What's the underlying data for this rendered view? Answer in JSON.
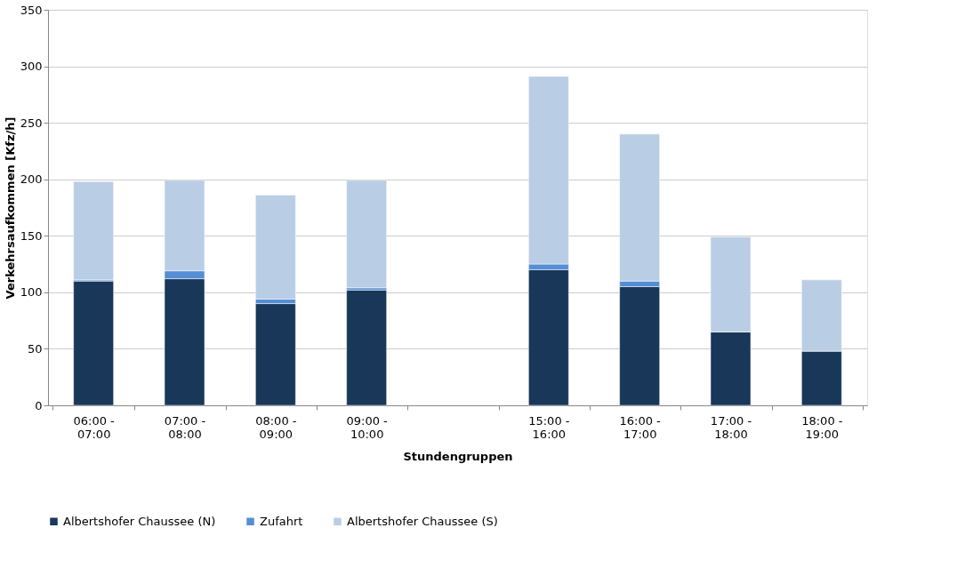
{
  "chart_data": {
    "type": "bar",
    "stacked": true,
    "xlabel": "Stundengruppen",
    "ylabel": "Verkehrsaufkommen [Kfz/h]",
    "categories": [
      "06:00 -\n07:00",
      "07:00 -\n08:00",
      "08:00 -\n09:00",
      "09:00 -\n10:00",
      null,
      "15:00 -\n16:00",
      "16:00 -\n17:00",
      "17:00 -\n18:00",
      "18:00 -\n19:00"
    ],
    "series": [
      {
        "name": "Albertshofer Chaussee (N)",
        "color": "#193759",
        "values": [
          110,
          112,
          90,
          102,
          null,
          120,
          105,
          65,
          48
        ]
      },
      {
        "name": "Zufahrt",
        "color": "#558ed5",
        "values": [
          1,
          7,
          4,
          2,
          null,
          5,
          5,
          0,
          0
        ]
      },
      {
        "name": "Albertshofer Chaussee (S)",
        "color": "#b9cde5",
        "values": [
          87,
          80,
          92,
          95,
          null,
          166,
          130,
          84,
          63
        ]
      }
    ],
    "ylim": [
      0,
      350
    ],
    "yticks": [
      0,
      50,
      100,
      150,
      200,
      250,
      300,
      350
    ],
    "grid": "y",
    "legend": "bottom"
  }
}
